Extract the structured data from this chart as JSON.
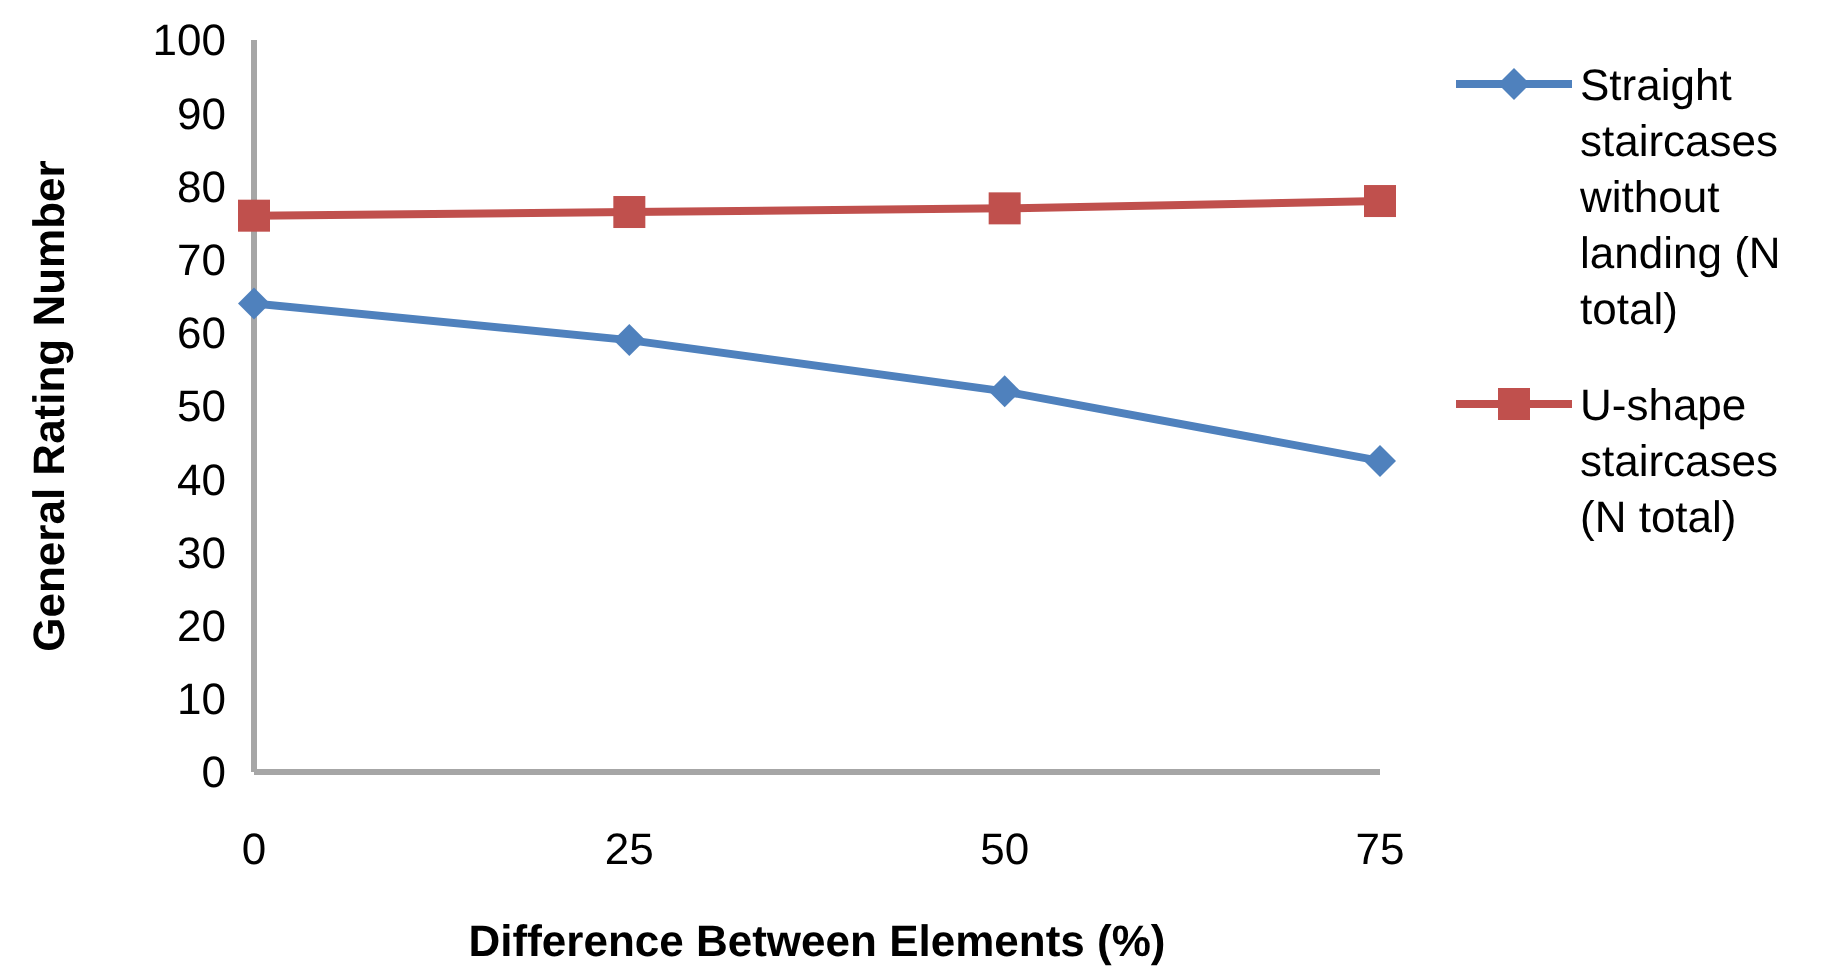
{
  "chart_data": {
    "type": "line",
    "xlabel": "Difference Between Elements (%)",
    "ylabel": "General Rating Number",
    "x": [
      0,
      25,
      50,
      75
    ],
    "xlim": [
      0,
      75
    ],
    "xticks": [
      0,
      25,
      50,
      75
    ],
    "ylim": [
      0,
      100
    ],
    "yticks": [
      0,
      10,
      20,
      30,
      40,
      50,
      60,
      70,
      80,
      90,
      100
    ],
    "grid": false,
    "legend": "right",
    "series": [
      {
        "name": "Straight staircases without landing (N total)",
        "color": "#4f81bd",
        "marker": "diamond",
        "values": [
          64,
          59,
          52,
          42.5
        ]
      },
      {
        "name": "U-shape staircases (N total)",
        "color": "#c0504d",
        "marker": "square",
        "values": [
          76,
          76.5,
          77,
          78
        ]
      }
    ]
  }
}
